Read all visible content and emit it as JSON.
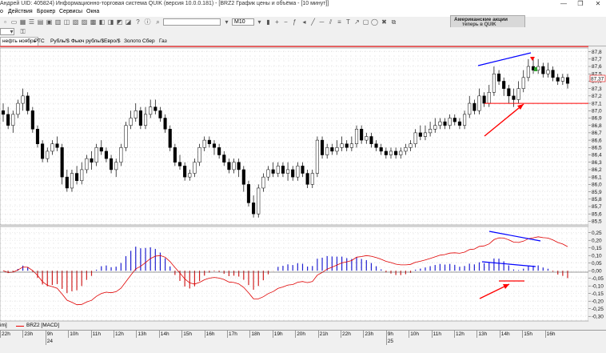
{
  "window": {
    "title": "Андрей UID: 405824) Информационно-торговая система QUIK (версия 10.0.0.181) - [BRZ2 График цены и объёма - [10 минут]]",
    "buttons": [
      "—",
      "❐",
      "✕"
    ]
  },
  "menu": [
    "о",
    "Действия",
    "Брокер",
    "Сервисы",
    "Окна"
  ],
  "toolbar": {
    "timeframe": "M10",
    "ad_line1": "Американские акции",
    "ad_line2": "теперь в QUIK"
  },
  "tabs": [
    {
      "label": "нефть ноябрь",
      "active": true
    },
    {
      "label": "РТС",
      "active": false
    },
    {
      "label": "Рубль/$",
      "active": false
    },
    {
      "label": "Фьюч рубль/$",
      "active": false
    },
    {
      "label": "Евро/$",
      "active": false
    },
    {
      "label": "Золото",
      "active": false
    },
    {
      "label": "Сбер",
      "active": false
    },
    {
      "label": "Газ",
      "active": false
    }
  ],
  "price_axis": {
    "labels": [
      "87,8",
      "87,7",
      "87,6",
      "87,5",
      "87,4",
      "87,3",
      "87,2",
      "87,1",
      "87,0",
      "86,9",
      "86,8",
      "86,7",
      "86,6",
      "86,5",
      "86,4",
      "86,3",
      "86,2",
      "86,1",
      "86,0",
      "85,9",
      "85,8",
      "85,7",
      "85,6",
      "85,5"
    ],
    "last_price": "87,37"
  },
  "macd_axis": {
    "labels": [
      "0,25",
      "0,20",
      "0,15",
      "0,10",
      "0,05",
      "0,00",
      "-0,05",
      "-0,10",
      "-0,15",
      "-0,20",
      "-0,25",
      "-0,30"
    ]
  },
  "legend": {
    "prefix": "im]",
    "series_name": "BRZ2 [MACD]"
  },
  "time_axis": {
    "hours": [
      "22h",
      "23h",
      "9h",
      "10h",
      "11h",
      "12h",
      "13h",
      "14h",
      "15h",
      "16h",
      "17h",
      "18h",
      "19h",
      "20h",
      "21h",
      "22h",
      "23h",
      "9h",
      "10h",
      "11h",
      "12h",
      "13h",
      "14h",
      "15h",
      "16h"
    ],
    "days": [
      "24",
      "25"
    ]
  },
  "colors": {
    "up_candle": "#ffffff",
    "down_candle": "#000000",
    "macd_signal": "#e00000",
    "hist_positive": "#2020d0",
    "hist_negative": "#d02020",
    "annotation_blue": "#0000ff",
    "annotation_red": "#ff0000",
    "chart_bg": "#ffffff"
  },
  "chart_data": [
    {
      "type": "candlestick",
      "title": "",
      "ylim": [
        85.45,
        87.85
      ],
      "candles": [
        [
          87.0,
          86.95,
          87.1,
          86.85
        ],
        [
          86.95,
          86.8,
          87.05,
          86.75
        ],
        [
          86.8,
          86.95,
          87.0,
          86.7
        ],
        [
          86.95,
          87.1,
          87.15,
          86.9
        ],
        [
          87.1,
          87.2,
          87.3,
          87.0
        ],
        [
          87.2,
          87.0,
          87.25,
          86.95
        ],
        [
          87.0,
          86.75,
          87.05,
          86.7
        ],
        [
          86.75,
          86.55,
          86.8,
          86.5
        ],
        [
          86.55,
          86.35,
          86.6,
          86.3
        ],
        [
          86.35,
          86.45,
          86.5,
          86.3
        ],
        [
          86.45,
          86.55,
          86.6,
          86.4
        ],
        [
          86.55,
          86.5,
          86.65,
          86.45
        ],
        [
          86.5,
          86.1,
          86.55,
          86.0
        ],
        [
          86.1,
          85.95,
          86.2,
          85.9
        ],
        [
          85.95,
          86.15,
          86.2,
          85.9
        ],
        [
          86.15,
          86.05,
          86.25,
          86.0
        ],
        [
          86.05,
          86.2,
          86.3,
          86.0
        ],
        [
          86.2,
          86.35,
          86.4,
          86.15
        ],
        [
          86.35,
          86.3,
          86.45,
          86.2
        ],
        [
          86.3,
          86.5,
          86.55,
          86.25
        ],
        [
          86.5,
          86.45,
          86.6,
          86.4
        ],
        [
          86.45,
          86.35,
          86.5,
          86.3
        ],
        [
          86.35,
          86.2,
          86.4,
          86.15
        ],
        [
          86.2,
          86.3,
          86.35,
          86.1
        ],
        [
          86.3,
          86.5,
          86.55,
          86.25
        ],
        [
          86.5,
          86.8,
          86.85,
          86.45
        ],
        [
          86.8,
          86.9,
          87.0,
          86.75
        ],
        [
          86.9,
          87.0,
          87.1,
          86.85
        ],
        [
          87.0,
          86.8,
          87.05,
          86.75
        ],
        [
          86.8,
          86.95,
          87.05,
          86.75
        ],
        [
          86.95,
          87.05,
          87.15,
          86.9
        ],
        [
          87.05,
          87.0,
          87.15,
          86.95
        ],
        [
          87.0,
          86.9,
          87.05,
          86.85
        ],
        [
          86.9,
          86.75,
          86.95,
          86.7
        ],
        [
          86.75,
          86.5,
          86.8,
          86.45
        ],
        [
          86.5,
          86.3,
          86.55,
          86.25
        ],
        [
          86.3,
          86.25,
          86.4,
          86.2
        ],
        [
          86.25,
          86.1,
          86.3,
          86.05
        ],
        [
          86.1,
          86.15,
          86.2,
          86.05
        ],
        [
          86.15,
          86.3,
          86.35,
          86.1
        ],
        [
          86.3,
          86.5,
          86.55,
          86.25
        ],
        [
          86.5,
          86.6,
          86.65,
          86.45
        ],
        [
          86.6,
          86.55,
          86.65,
          86.5
        ],
        [
          86.55,
          86.5,
          86.6,
          86.4
        ],
        [
          86.5,
          86.4,
          86.55,
          86.35
        ],
        [
          86.4,
          86.3,
          86.45,
          86.25
        ],
        [
          86.3,
          86.2,
          86.35,
          86.15
        ],
        [
          86.2,
          86.3,
          86.35,
          86.15
        ],
        [
          86.3,
          86.2,
          86.35,
          86.1
        ],
        [
          86.2,
          86.0,
          86.25,
          85.9
        ],
        [
          86.0,
          85.75,
          86.05,
          85.7
        ],
        [
          85.75,
          85.6,
          85.85,
          85.55
        ],
        [
          85.6,
          85.95,
          86.0,
          85.55
        ],
        [
          85.95,
          86.1,
          86.15,
          85.9
        ],
        [
          86.1,
          86.2,
          86.25,
          86.05
        ],
        [
          86.2,
          86.15,
          86.3,
          86.1
        ],
        [
          86.15,
          86.25,
          86.3,
          86.1
        ],
        [
          86.25,
          86.15,
          86.3,
          86.1
        ],
        [
          86.15,
          86.2,
          86.3,
          86.05
        ],
        [
          86.2,
          86.1,
          86.25,
          86.05
        ],
        [
          86.1,
          86.25,
          86.3,
          86.05
        ],
        [
          86.25,
          86.15,
          86.3,
          86.1
        ],
        [
          86.15,
          86.0,
          86.2,
          85.95
        ],
        [
          86.0,
          86.15,
          86.2,
          85.95
        ],
        [
          86.15,
          86.6,
          86.65,
          86.1
        ],
        [
          86.6,
          86.4,
          86.65,
          86.35
        ],
        [
          86.4,
          86.5,
          86.55,
          86.35
        ],
        [
          86.5,
          86.45,
          86.55,
          86.4
        ],
        [
          86.45,
          86.5,
          86.6,
          86.4
        ],
        [
          86.5,
          86.55,
          86.65,
          86.45
        ],
        [
          86.55,
          86.5,
          86.6,
          86.45
        ],
        [
          86.5,
          86.55,
          86.65,
          86.45
        ],
        [
          86.55,
          86.75,
          86.8,
          86.5
        ],
        [
          86.75,
          86.6,
          86.8,
          86.55
        ],
        [
          86.6,
          86.65,
          86.7,
          86.55
        ],
        [
          86.65,
          86.55,
          86.7,
          86.5
        ],
        [
          86.55,
          86.5,
          86.6,
          86.45
        ],
        [
          86.5,
          86.45,
          86.55,
          86.4
        ],
        [
          86.45,
          86.4,
          86.5,
          86.35
        ],
        [
          86.4,
          86.45,
          86.5,
          86.35
        ],
        [
          86.45,
          86.4,
          86.5,
          86.35
        ],
        [
          86.4,
          86.45,
          86.5,
          86.35
        ],
        [
          86.45,
          86.5,
          86.55,
          86.4
        ],
        [
          86.5,
          86.55,
          86.6,
          86.45
        ],
        [
          86.55,
          86.7,
          86.75,
          86.5
        ],
        [
          86.7,
          86.65,
          86.8,
          86.6
        ],
        [
          86.65,
          86.7,
          86.8,
          86.6
        ],
        [
          86.7,
          86.75,
          86.85,
          86.65
        ],
        [
          86.75,
          86.8,
          86.9,
          86.7
        ],
        [
          86.8,
          86.85,
          86.9,
          86.75
        ],
        [
          86.85,
          86.8,
          86.9,
          86.75
        ],
        [
          86.8,
          86.9,
          86.95,
          86.75
        ],
        [
          86.9,
          86.85,
          86.95,
          86.8
        ],
        [
          86.85,
          86.8,
          86.9,
          86.75
        ],
        [
          86.8,
          86.95,
          87.0,
          86.75
        ],
        [
          86.95,
          87.1,
          87.2,
          86.9
        ],
        [
          87.1,
          87.0,
          87.15,
          86.95
        ],
        [
          87.0,
          87.2,
          87.3,
          86.95
        ],
        [
          87.2,
          87.1,
          87.25,
          87.05
        ],
        [
          87.1,
          87.25,
          87.35,
          87.05
        ],
        [
          87.25,
          87.5,
          87.6,
          87.2
        ],
        [
          87.5,
          87.4,
          87.55,
          87.35
        ],
        [
          87.4,
          87.3,
          87.45,
          87.2
        ],
        [
          87.3,
          87.2,
          87.35,
          87.1
        ],
        [
          87.2,
          87.15,
          87.3,
          87.05
        ],
        [
          87.15,
          87.3,
          87.4,
          87.1
        ],
        [
          87.3,
          87.45,
          87.55,
          87.25
        ],
        [
          87.45,
          87.6,
          87.7,
          87.4
        ],
        [
          87.6,
          87.55,
          87.7,
          87.5
        ],
        [
          87.55,
          87.6,
          87.7,
          87.5
        ],
        [
          87.6,
          87.5,
          87.65,
          87.45
        ],
        [
          87.5,
          87.55,
          87.65,
          87.45
        ],
        [
          87.55,
          87.45,
          87.6,
          87.4
        ],
        [
          87.45,
          87.4,
          87.5,
          87.35
        ],
        [
          87.4,
          87.45,
          87.5,
          87.35
        ],
        [
          87.45,
          87.37,
          87.5,
          87.3
        ]
      ],
      "horizontal_lines": [
        {
          "y": 87.1,
          "color": "#ff0000"
        },
        {
          "y": 87.87,
          "color": "#ff0000"
        }
      ]
    },
    {
      "type": "bar+line",
      "title": "",
      "series": [
        {
          "name": "BRZ2 [MACD]"
        }
      ],
      "ylim": [
        -0.32,
        0.28
      ]
    }
  ]
}
